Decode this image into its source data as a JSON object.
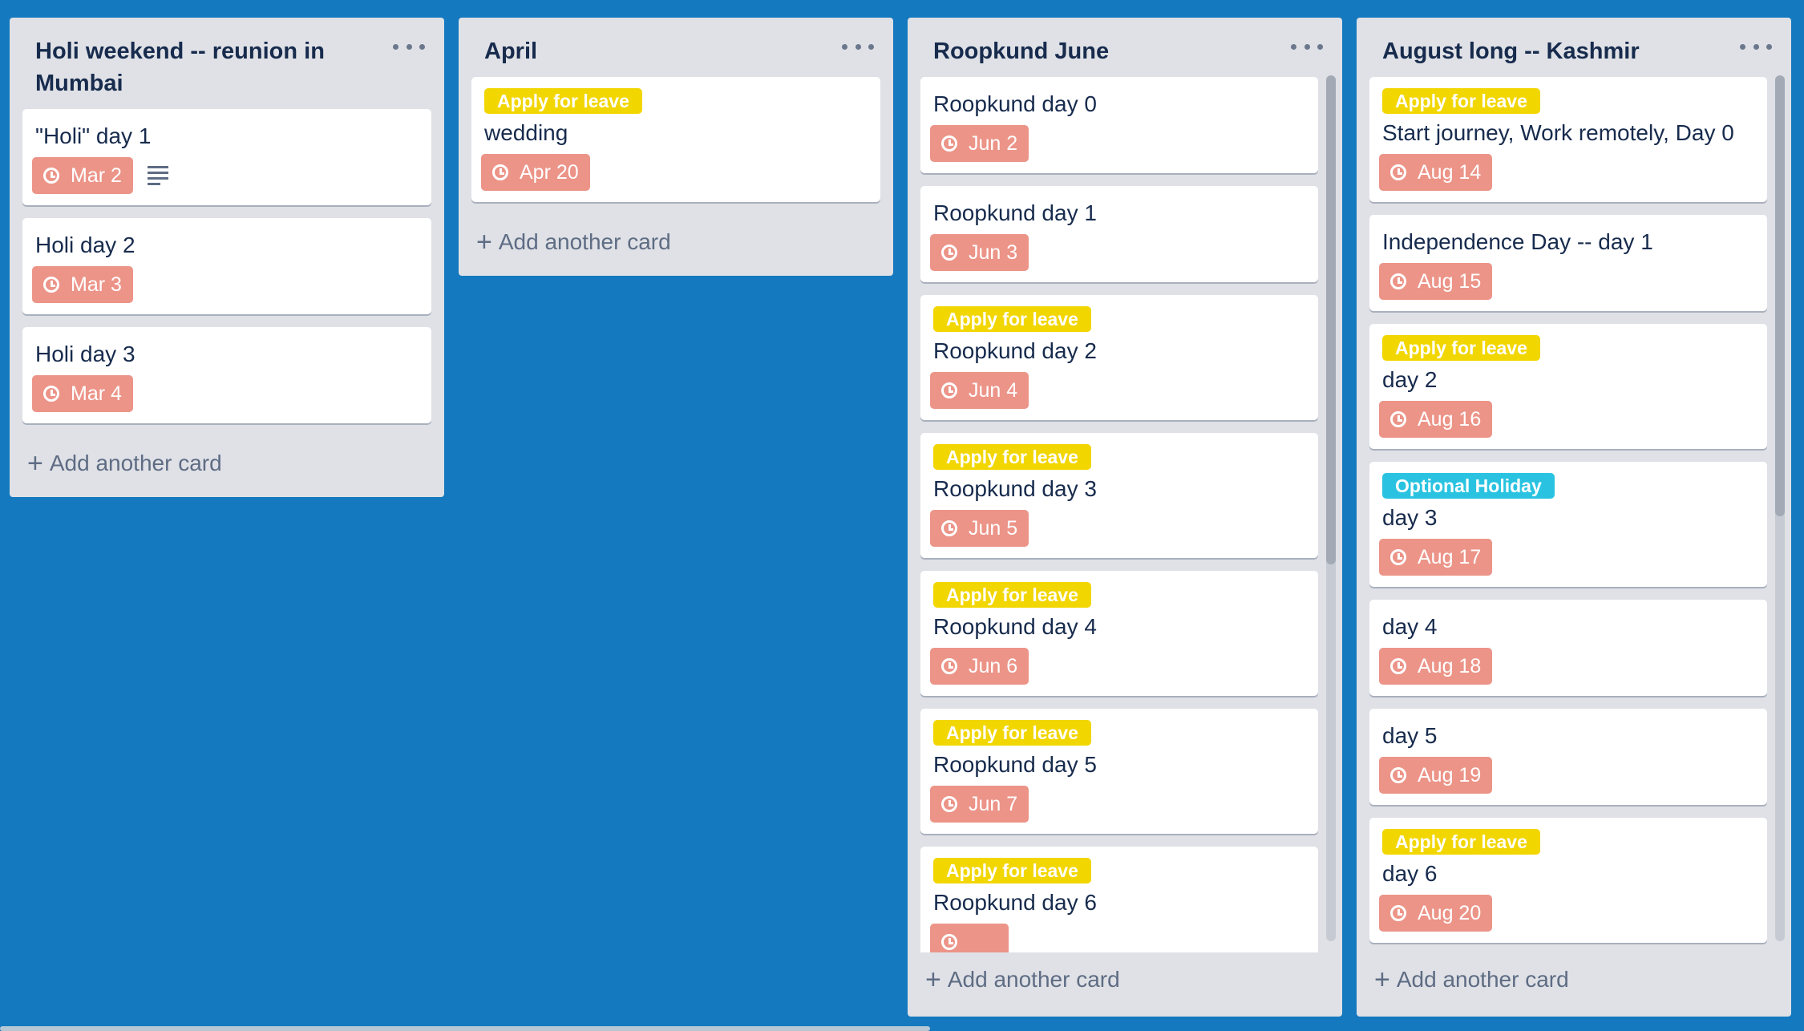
{
  "lists": [
    {
      "title": "Holi weekend -- reunion in Mumbai",
      "cards": [
        {
          "title": "\"Holi\" day 1",
          "due": "Mar 2",
          "has_description": true
        },
        {
          "title": "Holi day 2",
          "due": "Mar 3"
        },
        {
          "title": "Holi day 3",
          "due": "Mar 4"
        }
      ],
      "add_label": "Add another card"
    },
    {
      "title": "April",
      "cards": [
        {
          "label": "Apply for leave",
          "title": "wedding",
          "due": "Apr 20"
        }
      ],
      "add_label": "Add another card"
    },
    {
      "title": "Roopkund June",
      "cards": [
        {
          "title": "Roopkund day 0",
          "due": "Jun 2"
        },
        {
          "title": "Roopkund day 1",
          "due": "Jun 3"
        },
        {
          "label": "Apply for leave",
          "title": "Roopkund day 2",
          "due": "Jun 4"
        },
        {
          "label": "Apply for leave",
          "title": "Roopkund day 3",
          "due": "Jun 5"
        },
        {
          "label": "Apply for leave",
          "title": "Roopkund day 4",
          "due": "Jun 6"
        },
        {
          "label": "Apply for leave",
          "title": "Roopkund day 5",
          "due": "Jun 7"
        },
        {
          "label": "Apply for leave",
          "title": "Roopkund day 6"
        }
      ],
      "add_label": "Add another card"
    },
    {
      "title": "August long -- Kashmir",
      "cards": [
        {
          "label": "Apply for leave",
          "title": "Start journey, Work remotely, Day 0",
          "due": "Aug 14"
        },
        {
          "title": "Independence Day -- day 1",
          "due": "Aug 15"
        },
        {
          "label": "Apply for leave",
          "title": "day 2",
          "due": "Aug 16"
        },
        {
          "label": "Optional Holiday",
          "title": "day 3",
          "due": "Aug 17"
        },
        {
          "title": "day 4",
          "due": "Aug 18"
        },
        {
          "title": "day 5",
          "due": "Aug 19"
        },
        {
          "label": "Apply for leave",
          "title": "day 6",
          "due": "Aug 20"
        }
      ],
      "add_label": "Add another card"
    }
  ],
  "colors": {
    "board_bg": "#1479bf",
    "list_bg": "#dfe1e6",
    "due_badge": "#ec9488",
    "label_yellow": "#f2d600",
    "label_cyan": "#29c3e1"
  },
  "icons": {
    "due": "clock-icon",
    "description": "description-icon",
    "list_menu": "more-icon",
    "add": "plus-icon"
  }
}
